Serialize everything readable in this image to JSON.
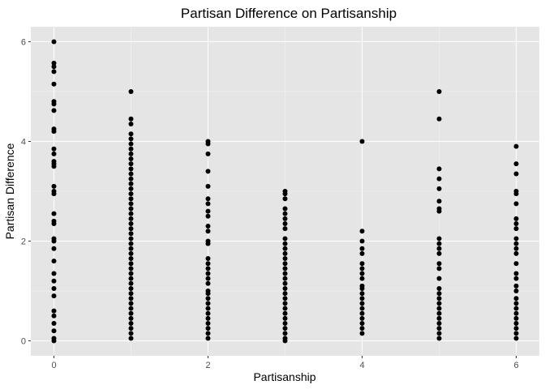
{
  "chart_data": {
    "type": "scatter",
    "title": "Partisan Difference on Partisanship",
    "xlabel": "Partisanship",
    "ylabel": "Partisan Difference",
    "xlim": [
      -0.3,
      6.3
    ],
    "ylim": [
      -0.3,
      6.3
    ],
    "x_ticks": [
      0,
      2,
      4,
      6
    ],
    "y_ticks": [
      0,
      2,
      4,
      6
    ],
    "x_tick_labels": [
      "0",
      "2",
      "4",
      "6"
    ],
    "y_tick_labels": [
      "0",
      "2",
      "4",
      "6"
    ],
    "grid": true,
    "legend": "none",
    "colors": {
      "panel": "#e5e5e5",
      "grid_major": "#ffffff",
      "grid_minor": "#f2f2f2",
      "point": "#000000",
      "tick": "#333333"
    },
    "points": [
      {
        "x": 0,
        "y": 6.0
      },
      {
        "x": 0,
        "y": 5.57
      },
      {
        "x": 0,
        "y": 5.5
      },
      {
        "x": 0,
        "y": 5.4
      },
      {
        "x": 0,
        "y": 5.15
      },
      {
        "x": 0,
        "y": 4.8
      },
      {
        "x": 0,
        "y": 4.75
      },
      {
        "x": 0,
        "y": 4.62
      },
      {
        "x": 0,
        "y": 4.25
      },
      {
        "x": 0,
        "y": 4.2
      },
      {
        "x": 0,
        "y": 3.85
      },
      {
        "x": 0,
        "y": 3.75
      },
      {
        "x": 0,
        "y": 3.6
      },
      {
        "x": 0,
        "y": 3.55
      },
      {
        "x": 0,
        "y": 3.5
      },
      {
        "x": 0,
        "y": 3.1
      },
      {
        "x": 0,
        "y": 3.0
      },
      {
        "x": 0,
        "y": 2.95
      },
      {
        "x": 0,
        "y": 2.55
      },
      {
        "x": 0,
        "y": 2.4
      },
      {
        "x": 0,
        "y": 2.35
      },
      {
        "x": 0,
        "y": 2.05
      },
      {
        "x": 0,
        "y": 2.0
      },
      {
        "x": 0,
        "y": 1.85
      },
      {
        "x": 0,
        "y": 1.6
      },
      {
        "x": 0,
        "y": 1.35
      },
      {
        "x": 0,
        "y": 1.2
      },
      {
        "x": 0,
        "y": 1.05
      },
      {
        "x": 0,
        "y": 0.9
      },
      {
        "x": 0,
        "y": 0.6
      },
      {
        "x": 0,
        "y": 0.5
      },
      {
        "x": 0,
        "y": 0.35
      },
      {
        "x": 0,
        "y": 0.2
      },
      {
        "x": 0,
        "y": 0.05
      },
      {
        "x": 0,
        "y": 0.0
      },
      {
        "x": 1,
        "y": 5.0
      },
      {
        "x": 1,
        "y": 4.45
      },
      {
        "x": 1,
        "y": 4.35
      },
      {
        "x": 1,
        "y": 4.15
      },
      {
        "x": 1,
        "y": 4.05
      },
      {
        "x": 1,
        "y": 3.95
      },
      {
        "x": 1,
        "y": 3.85
      },
      {
        "x": 1,
        "y": 3.75
      },
      {
        "x": 1,
        "y": 3.65
      },
      {
        "x": 1,
        "y": 3.55
      },
      {
        "x": 1,
        "y": 3.45
      },
      {
        "x": 1,
        "y": 3.35
      },
      {
        "x": 1,
        "y": 3.25
      },
      {
        "x": 1,
        "y": 3.15
      },
      {
        "x": 1,
        "y": 3.05
      },
      {
        "x": 1,
        "y": 2.95
      },
      {
        "x": 1,
        "y": 2.85
      },
      {
        "x": 1,
        "y": 2.75
      },
      {
        "x": 1,
        "y": 2.65
      },
      {
        "x": 1,
        "y": 2.55
      },
      {
        "x": 1,
        "y": 2.45
      },
      {
        "x": 1,
        "y": 2.35
      },
      {
        "x": 1,
        "y": 2.25
      },
      {
        "x": 1,
        "y": 2.15
      },
      {
        "x": 1,
        "y": 2.05
      },
      {
        "x": 1,
        "y": 1.95
      },
      {
        "x": 1,
        "y": 1.85
      },
      {
        "x": 1,
        "y": 1.75
      },
      {
        "x": 1,
        "y": 1.65
      },
      {
        "x": 1,
        "y": 1.55
      },
      {
        "x": 1,
        "y": 1.45
      },
      {
        "x": 1,
        "y": 1.35
      },
      {
        "x": 1,
        "y": 1.25
      },
      {
        "x": 1,
        "y": 1.15
      },
      {
        "x": 1,
        "y": 1.05
      },
      {
        "x": 1,
        "y": 0.95
      },
      {
        "x": 1,
        "y": 0.85
      },
      {
        "x": 1,
        "y": 0.75
      },
      {
        "x": 1,
        "y": 0.65
      },
      {
        "x": 1,
        "y": 0.55
      },
      {
        "x": 1,
        "y": 0.45
      },
      {
        "x": 1,
        "y": 0.35
      },
      {
        "x": 1,
        "y": 0.25
      },
      {
        "x": 1,
        "y": 0.15
      },
      {
        "x": 1,
        "y": 0.05
      },
      {
        "x": 2,
        "y": 4.0
      },
      {
        "x": 2,
        "y": 3.95
      },
      {
        "x": 2,
        "y": 3.75
      },
      {
        "x": 2,
        "y": 3.4
      },
      {
        "x": 2,
        "y": 3.1
      },
      {
        "x": 2,
        "y": 2.85
      },
      {
        "x": 2,
        "y": 2.75
      },
      {
        "x": 2,
        "y": 2.6
      },
      {
        "x": 2,
        "y": 2.5
      },
      {
        "x": 2,
        "y": 2.3
      },
      {
        "x": 2,
        "y": 2.2
      },
      {
        "x": 2,
        "y": 2.0
      },
      {
        "x": 2,
        "y": 1.95
      },
      {
        "x": 2,
        "y": 1.65
      },
      {
        "x": 2,
        "y": 1.55
      },
      {
        "x": 2,
        "y": 1.45
      },
      {
        "x": 2,
        "y": 1.35
      },
      {
        "x": 2,
        "y": 1.25
      },
      {
        "x": 2,
        "y": 1.15
      },
      {
        "x": 2,
        "y": 1.0
      },
      {
        "x": 2,
        "y": 0.95
      },
      {
        "x": 2,
        "y": 0.85
      },
      {
        "x": 2,
        "y": 0.75
      },
      {
        "x": 2,
        "y": 0.65
      },
      {
        "x": 2,
        "y": 0.55
      },
      {
        "x": 2,
        "y": 0.45
      },
      {
        "x": 2,
        "y": 0.35
      },
      {
        "x": 2,
        "y": 0.25
      },
      {
        "x": 2,
        "y": 0.15
      },
      {
        "x": 2,
        "y": 0.05
      },
      {
        "x": 3,
        "y": 3.0
      },
      {
        "x": 3,
        "y": 2.95
      },
      {
        "x": 3,
        "y": 2.85
      },
      {
        "x": 3,
        "y": 2.65
      },
      {
        "x": 3,
        "y": 2.55
      },
      {
        "x": 3,
        "y": 2.45
      },
      {
        "x": 3,
        "y": 2.35
      },
      {
        "x": 3,
        "y": 2.25
      },
      {
        "x": 3,
        "y": 2.05
      },
      {
        "x": 3,
        "y": 1.95
      },
      {
        "x": 3,
        "y": 1.85
      },
      {
        "x": 3,
        "y": 1.75
      },
      {
        "x": 3,
        "y": 1.65
      },
      {
        "x": 3,
        "y": 1.55
      },
      {
        "x": 3,
        "y": 1.45
      },
      {
        "x": 3,
        "y": 1.35
      },
      {
        "x": 3,
        "y": 1.25
      },
      {
        "x": 3,
        "y": 1.15
      },
      {
        "x": 3,
        "y": 1.05
      },
      {
        "x": 3,
        "y": 0.95
      },
      {
        "x": 3,
        "y": 0.85
      },
      {
        "x": 3,
        "y": 0.75
      },
      {
        "x": 3,
        "y": 0.65
      },
      {
        "x": 3,
        "y": 0.55
      },
      {
        "x": 3,
        "y": 0.45
      },
      {
        "x": 3,
        "y": 0.35
      },
      {
        "x": 3,
        "y": 0.25
      },
      {
        "x": 3,
        "y": 0.15
      },
      {
        "x": 3,
        "y": 0.05
      },
      {
        "x": 3,
        "y": 0.0
      },
      {
        "x": 4,
        "y": 4.0
      },
      {
        "x": 4,
        "y": 2.2
      },
      {
        "x": 4,
        "y": 2.0
      },
      {
        "x": 4,
        "y": 1.85
      },
      {
        "x": 4,
        "y": 1.75
      },
      {
        "x": 4,
        "y": 1.55
      },
      {
        "x": 4,
        "y": 1.45
      },
      {
        "x": 4,
        "y": 1.35
      },
      {
        "x": 4,
        "y": 1.25
      },
      {
        "x": 4,
        "y": 1.1
      },
      {
        "x": 4,
        "y": 1.05
      },
      {
        "x": 4,
        "y": 0.95
      },
      {
        "x": 4,
        "y": 0.85
      },
      {
        "x": 4,
        "y": 0.75
      },
      {
        "x": 4,
        "y": 0.65
      },
      {
        "x": 4,
        "y": 0.55
      },
      {
        "x": 4,
        "y": 0.45
      },
      {
        "x": 4,
        "y": 0.35
      },
      {
        "x": 4,
        "y": 0.25
      },
      {
        "x": 4,
        "y": 0.15
      },
      {
        "x": 5,
        "y": 5.0
      },
      {
        "x": 5,
        "y": 4.45
      },
      {
        "x": 5,
        "y": 3.45
      },
      {
        "x": 5,
        "y": 3.25
      },
      {
        "x": 5,
        "y": 3.05
      },
      {
        "x": 5,
        "y": 2.8
      },
      {
        "x": 5,
        "y": 2.65
      },
      {
        "x": 5,
        "y": 2.6
      },
      {
        "x": 5,
        "y": 2.05
      },
      {
        "x": 5,
        "y": 1.95
      },
      {
        "x": 5,
        "y": 1.85
      },
      {
        "x": 5,
        "y": 1.75
      },
      {
        "x": 5,
        "y": 1.55
      },
      {
        "x": 5,
        "y": 1.45
      },
      {
        "x": 5,
        "y": 1.25
      },
      {
        "x": 5,
        "y": 1.05
      },
      {
        "x": 5,
        "y": 0.95
      },
      {
        "x": 5,
        "y": 0.85
      },
      {
        "x": 5,
        "y": 0.75
      },
      {
        "x": 5,
        "y": 0.65
      },
      {
        "x": 5,
        "y": 0.55
      },
      {
        "x": 5,
        "y": 0.45
      },
      {
        "x": 5,
        "y": 0.35
      },
      {
        "x": 5,
        "y": 0.25
      },
      {
        "x": 5,
        "y": 0.15
      },
      {
        "x": 5,
        "y": 0.05
      },
      {
        "x": 6,
        "y": 3.9
      },
      {
        "x": 6,
        "y": 3.55
      },
      {
        "x": 6,
        "y": 3.35
      },
      {
        "x": 6,
        "y": 3.0
      },
      {
        "x": 6,
        "y": 2.95
      },
      {
        "x": 6,
        "y": 2.75
      },
      {
        "x": 6,
        "y": 2.45
      },
      {
        "x": 6,
        "y": 2.35
      },
      {
        "x": 6,
        "y": 2.25
      },
      {
        "x": 6,
        "y": 2.05
      },
      {
        "x": 6,
        "y": 1.95
      },
      {
        "x": 6,
        "y": 1.85
      },
      {
        "x": 6,
        "y": 1.75
      },
      {
        "x": 6,
        "y": 1.55
      },
      {
        "x": 6,
        "y": 1.35
      },
      {
        "x": 6,
        "y": 1.25
      },
      {
        "x": 6,
        "y": 1.1
      },
      {
        "x": 6,
        "y": 1.0
      },
      {
        "x": 6,
        "y": 0.85
      },
      {
        "x": 6,
        "y": 0.75
      },
      {
        "x": 6,
        "y": 0.65
      },
      {
        "x": 6,
        "y": 0.55
      },
      {
        "x": 6,
        "y": 0.45
      },
      {
        "x": 6,
        "y": 0.35
      },
      {
        "x": 6,
        "y": 0.25
      },
      {
        "x": 6,
        "y": 0.15
      },
      {
        "x": 6,
        "y": 0.05
      }
    ]
  }
}
